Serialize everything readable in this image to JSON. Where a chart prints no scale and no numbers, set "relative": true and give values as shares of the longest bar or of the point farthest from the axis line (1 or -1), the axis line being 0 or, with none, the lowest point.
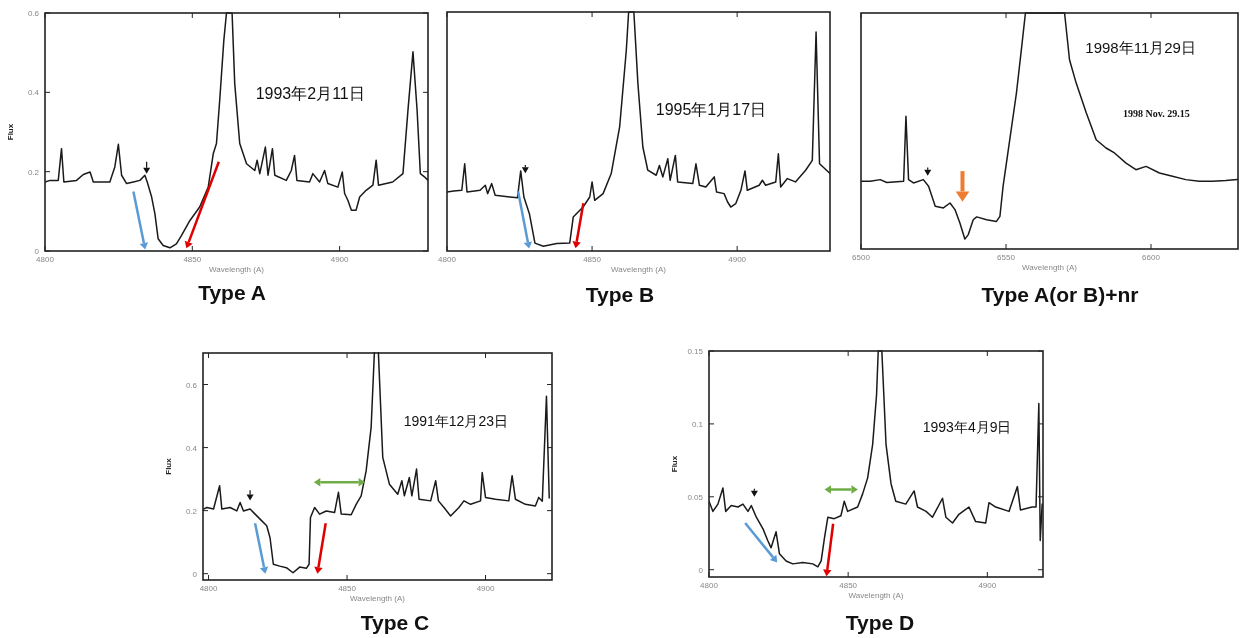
{
  "chart_data": [
    {
      "type": "line",
      "title": "Type A",
      "xlabel": "Wavelength (A)",
      "ylabel": "Flux",
      "annotations": [
        "1993年2月11日"
      ],
      "color": "#1a1a1a",
      "xlim": [
        4800,
        4930
      ],
      "ylim": [
        0,
        0.6
      ],
      "xticks": [
        4800,
        4850,
        4900
      ],
      "yticks": [
        0,
        0.2,
        0.4,
        0.6
      ],
      "x": [
        4800,
        4801.7,
        4804.5,
        4805.6,
        4806.4,
        4810.7,
        4813,
        4815.3,
        4816.4,
        4822,
        4823.7,
        4824.9,
        4826,
        4827.7,
        4830,
        4832.2,
        4833.9,
        4834.7,
        4836.2,
        4837.3,
        4838.4,
        4840.1,
        4842.4,
        4844.6,
        4846.3,
        4849.2,
        4852.5,
        4855.4,
        4857.1,
        4858.2,
        4859.3,
        4860.7,
        4861.6,
        4863.5,
        4864.4,
        4866.1,
        4868.4,
        4871.2,
        4872,
        4872.9,
        4874.8,
        4875.7,
        4877.2,
        4878,
        4881.9,
        4883.6,
        4884.7,
        4885.5,
        4889.8,
        4890.9,
        4893.2,
        4894.9,
        4896,
        4899.4,
        4900.9,
        4901.7,
        4902.8,
        4904,
        4905.6,
        4906.8,
        4909,
        4911.3,
        4912.4,
        4913.2,
        4918,
        4921.5,
        4923.2,
        4924.9,
        4926.3,
        4927.4,
        4928.8,
        4930
      ],
      "values": [
        0.174,
        0.178,
        0.178,
        0.258,
        0.174,
        0.178,
        0.193,
        0.199,
        0.174,
        0.174,
        0.212,
        0.269,
        0.191,
        0.17,
        0.174,
        0.178,
        0.191,
        0.174,
        0.136,
        0.094,
        0.031,
        0.014,
        0.008,
        0.018,
        0.039,
        0.077,
        0.111,
        0.161,
        0.245,
        0.271,
        0.38,
        0.531,
        0.6,
        0.6,
        0.422,
        0.271,
        0.22,
        0.203,
        0.229,
        0.195,
        0.262,
        0.191,
        0.258,
        0.191,
        0.178,
        0.203,
        0.241,
        0.178,
        0.174,
        0.195,
        0.174,
        0.203,
        0.17,
        0.161,
        0.199,
        0.145,
        0.128,
        0.103,
        0.103,
        0.136,
        0.153,
        0.166,
        0.229,
        0.166,
        0.174,
        0.195,
        0.355,
        0.502,
        0.355,
        0.195,
        0.187,
        0.178
      ]
    },
    {
      "type": "line",
      "title": "Type B",
      "xlabel": "Wavelength (A)",
      "annotations": [
        "1995年1月17日"
      ],
      "color": "#1a1a1a",
      "relative": true,
      "xlim": [
        4800,
        4932
      ],
      "xticks": [
        4800,
        4850,
        4900
      ],
      "x": [
        4800,
        4802.3,
        4805.1,
        4806.1,
        4806.9,
        4811.4,
        4813.2,
        4814,
        4815.4,
        4816.6,
        4821.7,
        4824.3,
        4825.4,
        4826.5,
        4828.4,
        4830.3,
        4833.2,
        4837.8,
        4842.3,
        4843.5,
        4845.2,
        4846.9,
        4849.2,
        4850,
        4850.9,
        4853.8,
        4856.6,
        4859.5,
        4861.8,
        4862.6,
        4864.4,
        4865.8,
        4867.5,
        4869.2,
        4872.1,
        4873.2,
        4874.4,
        4876.1,
        4876.9,
        4878.7,
        4879.5,
        4884.7,
        4885.8,
        4887,
        4889.2,
        4892.1,
        4892.9,
        4895.5,
        4896.7,
        4897.8,
        4899.5,
        4901.3,
        4902.7,
        4903.5,
        4907.6,
        4908.7,
        4909.8,
        4913.3,
        4914.2,
        4915,
        4917.3,
        4920.1,
        4923.6,
        4925.9,
        4927.2,
        4928.4,
        4932
      ],
      "values": [
        0.247,
        0.251,
        0.254,
        0.365,
        0.247,
        0.254,
        0.275,
        0.24,
        0.282,
        0.233,
        0.226,
        0.223,
        0.335,
        0.226,
        0.156,
        0.033,
        0.02,
        0.031,
        0.033,
        0.142,
        0.163,
        0.184,
        0.226,
        0.289,
        0.212,
        0.24,
        0.324,
        0.519,
        0.84,
        1,
        1,
        0.7,
        0.435,
        0.338,
        0.317,
        0.358,
        0.31,
        0.386,
        0.296,
        0.4,
        0.289,
        0.282,
        0.365,
        0.275,
        0.268,
        0.31,
        0.247,
        0.24,
        0.205,
        0.184,
        0.198,
        0.254,
        0.335,
        0.254,
        0.275,
        0.296,
        0.275,
        0.289,
        0.407,
        0.268,
        0.303,
        0.289,
        0.338,
        0.379,
        0.916,
        0.365,
        0.324
      ]
    },
    {
      "type": "line",
      "title": "Type A(or B)+nr",
      "xlabel": "Wavelength (A)",
      "annotations": [
        "1998年11月29日",
        "1998 Nov. 29.15"
      ],
      "color": "#1a1a1a",
      "relative": true,
      "xlim": [
        6500,
        6630
      ],
      "xticks": [
        6500,
        6550,
        6600
      ],
      "x": [
        6500,
        6503.2,
        6506.6,
        6508.9,
        6514.7,
        6515.5,
        6516.4,
        6518.1,
        6521.5,
        6523.3,
        6525.6,
        6528.4,
        6530.7,
        6532.4,
        6534.1,
        6535.8,
        6537,
        6538.7,
        6539.9,
        6543.3,
        6546.7,
        6547.9,
        6549,
        6551.3,
        6553.6,
        6555.3,
        6556.7,
        6570.2,
        6571.9,
        6574.2,
        6577.7,
        6581.1,
        6584.5,
        6587.4,
        6591.4,
        6594.8,
        6598.3,
        6602.9,
        6607.4,
        6612,
        6616.6,
        6621.2,
        6625.8,
        6629.8
      ],
      "values": [
        0.287,
        0.287,
        0.294,
        0.282,
        0.287,
        0.562,
        0.294,
        0.28,
        0.294,
        0.266,
        0.181,
        0.174,
        0.195,
        0.167,
        0.11,
        0.042,
        0.061,
        0.124,
        0.136,
        0.124,
        0.117,
        0.138,
        0.266,
        0.463,
        0.661,
        0.845,
        1,
        1,
        0.802,
        0.703,
        0.576,
        0.463,
        0.428,
        0.407,
        0.364,
        0.336,
        0.35,
        0.322,
        0.308,
        0.294,
        0.287,
        0.287,
        0.29,
        0.294
      ]
    },
    {
      "type": "line",
      "title": "Type C",
      "xlabel": "Wavelength (A)",
      "ylabel": "Flux",
      "annotations": [
        "1991年12月23日"
      ],
      "color": "#1a1a1a",
      "xlim": [
        4798,
        4924
      ],
      "ylim": [
        -0.02,
        0.7
      ],
      "xticks": [
        4800,
        4850,
        4900
      ],
      "yticks": [
        0,
        0.2,
        0.4,
        0.6
      ],
      "x": [
        4798.2,
        4799.4,
        4801.8,
        4804,
        4804.8,
        4807.8,
        4810.2,
        4811.4,
        4812.6,
        4815,
        4816.8,
        4818.6,
        4821,
        4822.2,
        4823.4,
        4825.7,
        4828.1,
        4830.5,
        4832.9,
        4835.3,
        4836.3,
        4836.8,
        4838.3,
        4840.1,
        4842.5,
        4845.5,
        4846.9,
        4847.9,
        4851.5,
        4853.3,
        4855.1,
        4856.9,
        4858.7,
        4859.9,
        4861.3,
        4862.9,
        4865.3,
        4868.3,
        4869.8,
        4870.7,
        4872.5,
        4873.4,
        4875.1,
        4876,
        4880.2,
        4882,
        4883,
        4885,
        4887.4,
        4890.4,
        4892.2,
        4894.6,
        4898.2,
        4898.8,
        4900,
        4903.6,
        4908.4,
        4909.6,
        4910.8,
        4914.4,
        4918,
        4919.2,
        4920.5,
        4922,
        4923
      ],
      "values": [
        0.205,
        0.21,
        0.205,
        0.279,
        0.205,
        0.21,
        0.199,
        0.226,
        0.199,
        0.205,
        0.189,
        0.173,
        0.152,
        0.114,
        0.03,
        0.024,
        0.019,
        0.003,
        0.021,
        0.017,
        0.03,
        0.178,
        0.21,
        0.189,
        0.199,
        0.194,
        0.258,
        0.189,
        0.187,
        0.22,
        0.247,
        0.326,
        0.464,
        null,
        null,
        0.369,
        0.284,
        0.252,
        0.295,
        0.247,
        0.305,
        0.247,
        0.332,
        0.236,
        0.231,
        0.295,
        0.231,
        0.21,
        0.183,
        0.21,
        0.231,
        0.22,
        0.231,
        0.321,
        0.242,
        0.236,
        0.231,
        0.311,
        0.236,
        0.22,
        0.215,
        0.242,
        0.23,
        0.563,
        0.24
      ]
    },
    {
      "type": "line",
      "title": "Type D",
      "xlabel": "Wavelength (A)",
      "ylabel": "Flux",
      "annotations": [
        "1993年4月9日"
      ],
      "color": "#1a1a1a",
      "xlim": [
        4800,
        4920
      ],
      "ylim": [
        -0.005,
        0.15
      ],
      "xticks": [
        4800,
        4850,
        4900
      ],
      "yticks": [
        0,
        0.05,
        0.1,
        0.15
      ],
      "x": [
        4800,
        4801.4,
        4803.2,
        4805,
        4806,
        4808,
        4810.4,
        4812.2,
        4814,
        4815.2,
        4817,
        4819.4,
        4821.1,
        4822.3,
        4824.1,
        4825.3,
        4827.7,
        4830.1,
        4833.7,
        4837.3,
        4839.1,
        4840.3,
        4841.5,
        4842.7,
        4845,
        4847.4,
        4848.6,
        4849.8,
        4853.4,
        4855.2,
        4857,
        4858.8,
        4860.2,
        4860.8,
        4862.1,
        4863.6,
        4865.4,
        4867.1,
        4870.7,
        4873.7,
        4874.9,
        4878,
        4880.3,
        4883.9,
        4885.1,
        4887.5,
        4889.8,
        4893.4,
        4895.8,
        4899.4,
        4900.6,
        4903,
        4907.8,
        4910.8,
        4911.9,
        4916.1,
        4917.5,
        4918.5,
        4919,
        4919.7
      ],
      "values": [
        0.047,
        0.04,
        0.045,
        0.056,
        0.04,
        0.044,
        0.043,
        0.045,
        0.04,
        0.044,
        0.036,
        0.028,
        0.02,
        0.015,
        0.026,
        0.011,
        0.006,
        0.004,
        0.005,
        0.004,
        0.002,
        0.006,
        0.022,
        0.036,
        0.035,
        0.037,
        0.047,
        0.04,
        0.043,
        0.052,
        0.063,
        0.086,
        0.12,
        0.15,
        0.15,
        0.086,
        0.059,
        0.047,
        0.045,
        0.054,
        0.043,
        0.04,
        0.036,
        0.049,
        0.036,
        0.032,
        0.038,
        0.043,
        0.033,
        0.032,
        0.046,
        0.043,
        0.04,
        0.057,
        0.041,
        0.043,
        0.043,
        0.114,
        0.02,
        0.045
      ]
    }
  ]
}
